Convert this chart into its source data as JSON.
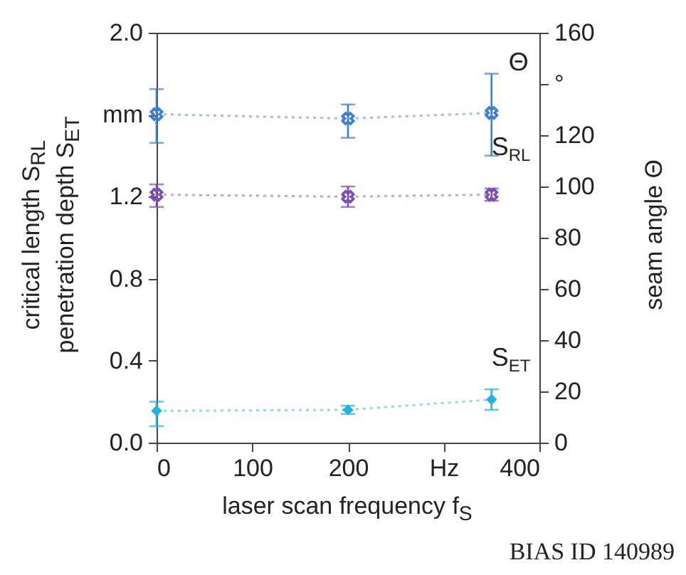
{
  "chart_data": {
    "type": "line",
    "xlabel": "laser scan frequency f$_{S}$",
    "ylabel": "critical length S$_{RL}$\npenetration depth S$_{ET}$",
    "y2label": "seam angle Θ",
    "x": [
      0,
      200,
      350
    ],
    "xlim": [
      0,
      400
    ],
    "xticks": [
      0,
      100,
      200,
      {
        "value": 300,
        "label": "Hz"
      },
      400
    ],
    "ylim": [
      0,
      2
    ],
    "yticks": [
      {
        "value": 0,
        "label": "0.0"
      },
      {
        "value": 0.4,
        "label": "0.4"
      },
      {
        "value": 0.8,
        "label": "0.8"
      },
      {
        "value": 1.2,
        "label": "1.2"
      },
      {
        "value": 1.6,
        "label": "mm"
      },
      {
        "value": 2,
        "label": "2.0"
      }
    ],
    "y2lim": [
      0,
      160
    ],
    "y2ticks": [
      0,
      20,
      40,
      60,
      80,
      100,
      120,
      {
        "value": 140,
        "label": "°"
      },
      160
    ],
    "line_style": "dotted",
    "series": [
      {
        "name": "Θ",
        "color": "#3f7fcf",
        "axis": "y2",
        "marker": "cross",
        "values": [
          128.2,
          126.5,
          128.7
        ],
        "errors": [
          [
            117,
            138
          ],
          [
            119,
            132
          ],
          [
            112,
            144
          ]
        ]
      },
      {
        "name": "S$_{RL}$",
        "color": "#7b4fb0",
        "marker": "cross",
        "values": [
          1.21,
          1.2,
          1.21
        ],
        "errors": [
          [
            1.15,
            1.26
          ],
          [
            1.15,
            1.25
          ],
          [
            1.18,
            1.24
          ]
        ]
      },
      {
        "name": "S$_{ET}$",
        "color": "#27b0d8",
        "marker": "diamond",
        "values": [
          0.155,
          0.16,
          0.21
        ],
        "errors": [
          [
            0.08,
            0.2
          ],
          [
            0.14,
            0.18
          ],
          [
            0.16,
            0.26
          ]
        ]
      }
    ],
    "annotations": [
      "BIAS ID 140989"
    ]
  }
}
